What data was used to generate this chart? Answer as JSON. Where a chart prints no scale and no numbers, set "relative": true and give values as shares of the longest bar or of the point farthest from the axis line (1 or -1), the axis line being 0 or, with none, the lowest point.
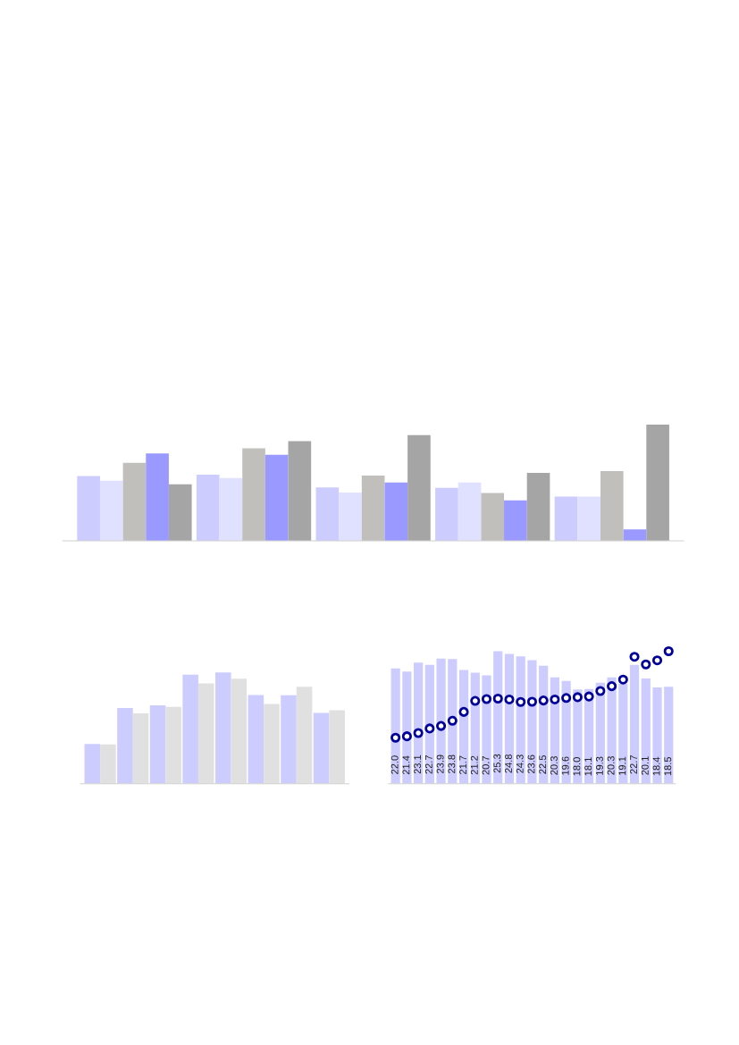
{
  "chart_data": [
    {
      "type": "bar",
      "relative": true,
      "categories": [
        null,
        null,
        null,
        null,
        null
      ],
      "series": [
        {
          "color": "#ccccff",
          "values": [
            0.557,
            0.569,
            0.459,
            0.455,
            0.38
          ]
        },
        {
          "color": "#e0e0ff",
          "values": [
            0.518,
            0.541,
            0.416,
            0.502,
            0.38
          ]
        },
        {
          "color": "#c0bfbb",
          "values": [
            0.671,
            0.796,
            0.561,
            0.412,
            0.6
          ]
        },
        {
          "color": "#9999ff",
          "values": [
            0.753,
            0.741,
            0.502,
            0.349,
            0.098
          ]
        },
        {
          "color": "#a6a5a5",
          "values": [
            0.486,
            0.859,
            0.91,
            0.584,
            1.0
          ]
        }
      ]
    },
    {
      "type": "bar",
      "relative": true,
      "categories": [
        null,
        null,
        null,
        null,
        null,
        null,
        null,
        null
      ],
      "series": [
        {
          "color": "#ccccff",
          "values": [
            0.357,
            0.68,
            0.704,
            0.98,
            1.0,
            0.798,
            0.795,
            0.636
          ]
        },
        {
          "color": "#e0e0e0",
          "values": [
            0.354,
            0.633,
            0.69,
            0.902,
            0.943,
            0.717,
            0.872,
            0.66
          ]
        }
      ]
    },
    {
      "type": "bar",
      "categories": [
        null,
        null,
        null,
        null,
        null,
        null,
        null,
        null,
        null,
        null,
        null,
        null,
        null,
        null,
        null,
        null,
        null,
        null,
        null,
        null,
        null,
        null,
        null,
        null,
        null
      ],
      "series": [
        {
          "color": "#ccccff",
          "values": [
            22.0,
            21.4,
            23.1,
            22.7,
            23.9,
            23.8,
            21.7,
            21.2,
            20.7,
            25.3,
            24.8,
            24.3,
            23.6,
            22.5,
            20.3,
            19.6,
            18.0,
            18.1,
            19.3,
            20.3,
            19.1,
            22.7,
            20.1,
            18.4,
            18.5
          ],
          "value_labels": [
            "22.0",
            "21.4",
            "23.1",
            "22.7",
            "23.9",
            "23.8",
            "21.7",
            "21.2",
            "20.7",
            "25.3",
            "24.8",
            "24.3",
            "23.6",
            "22.5",
            "20.3",
            "19.6",
            "18.0",
            "18.1",
            "19.3",
            "20.3",
            "19.1",
            "22.7",
            "20.1",
            "18.4",
            "18.5"
          ]
        }
      ]
    },
    {
      "type": "scatter",
      "relative": true,
      "marker": "circle",
      "categories": [
        null,
        null,
        null,
        null,
        null,
        null,
        null,
        null,
        null,
        null,
        null,
        null,
        null,
        null,
        null,
        null,
        null,
        null,
        null,
        null,
        null,
        null,
        null,
        null,
        null
      ],
      "series": [
        {
          "color": "#000099",
          "values": [
            0.347,
            0.358,
            0.383,
            0.417,
            0.436,
            0.475,
            0.542,
            0.625,
            0.639,
            0.642,
            0.636,
            0.617,
            0.619,
            0.628,
            0.636,
            0.647,
            0.653,
            0.658,
            0.7,
            0.736,
            0.786,
            0.958,
            0.9,
            0.931,
            1.0
          ]
        }
      ]
    }
  ]
}
